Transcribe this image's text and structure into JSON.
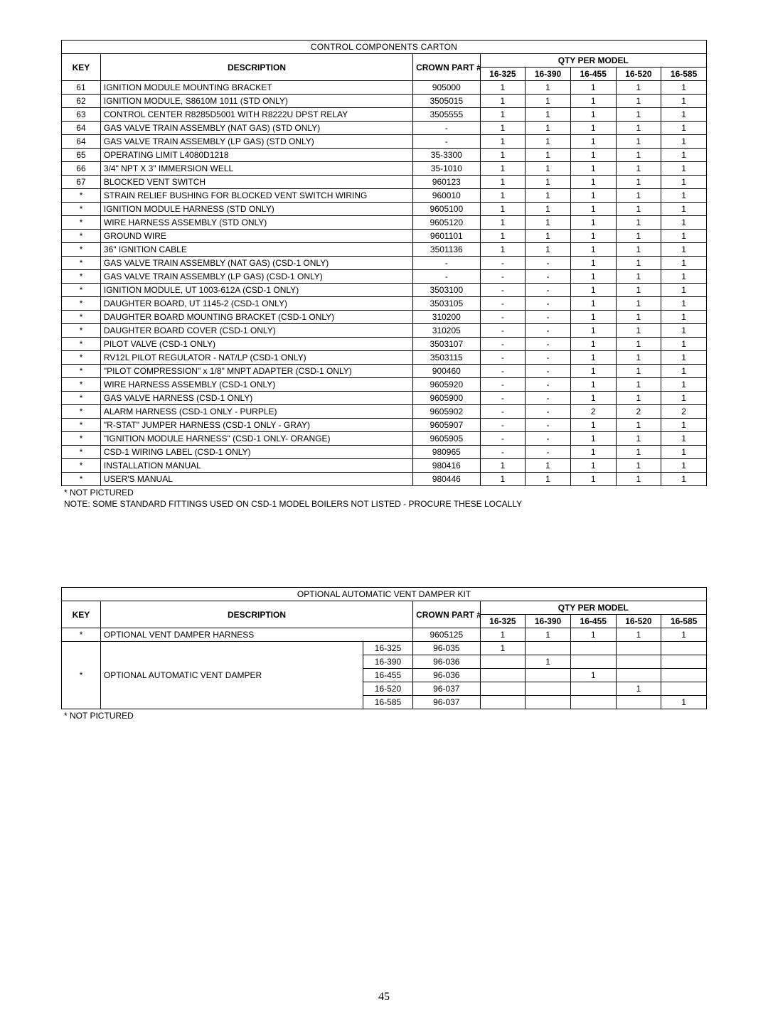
{
  "table1": {
    "title": "CONTROL COMPONENTS CARTON",
    "headers": {
      "key": "KEY",
      "desc": "DESCRIPTION",
      "part": "CROWN PART #",
      "qty_group": "QTY PER MODEL",
      "models": [
        "16-325",
        "16-390",
        "16-455",
        "16-520",
        "16-585"
      ]
    },
    "rows": [
      {
        "key": "61",
        "desc": "IGNITION MODULE MOUNTING BRACKET",
        "part": "905000",
        "q": [
          "1",
          "1",
          "1",
          "1",
          "1"
        ]
      },
      {
        "key": "62",
        "desc": "IGNITION MODULE, S8610M 1011 (STD ONLY)",
        "part": "3505015",
        "q": [
          "1",
          "1",
          "1",
          "1",
          "1"
        ]
      },
      {
        "key": "63",
        "desc": "CONTROL CENTER R8285D5001 WITH R8222U DPST RELAY",
        "part": "3505555",
        "q": [
          "1",
          "1",
          "1",
          "1",
          "1"
        ]
      },
      {
        "key": "64",
        "desc": "GAS VALVE TRAIN ASSEMBLY (NAT GAS) (STD ONLY)",
        "part": "-",
        "q": [
          "1",
          "1",
          "1",
          "1",
          "1"
        ]
      },
      {
        "key": "64",
        "desc": "GAS VALVE TRAIN ASSEMBLY (LP GAS) (STD ONLY)",
        "part": "-",
        "q": [
          "1",
          "1",
          "1",
          "1",
          "1"
        ]
      },
      {
        "key": "65",
        "desc": "OPERATING LIMIT L4080D1218",
        "part": "35-3300",
        "q": [
          "1",
          "1",
          "1",
          "1",
          "1"
        ]
      },
      {
        "key": "66",
        "desc": "3/4\" NPT X 3\" IMMERSION WELL",
        "part": "35-1010",
        "q": [
          "1",
          "1",
          "1",
          "1",
          "1"
        ]
      },
      {
        "key": "67",
        "desc": "BLOCKED VENT SWITCH",
        "part": "960123",
        "q": [
          "1",
          "1",
          "1",
          "1",
          "1"
        ]
      },
      {
        "key": "*",
        "desc": "STRAIN RELIEF BUSHING FOR BLOCKED VENT SWITCH WIRING",
        "part": "960010",
        "q": [
          "1",
          "1",
          "1",
          "1",
          "1"
        ]
      },
      {
        "key": "*",
        "desc": "IGNITION MODULE HARNESS (STD ONLY)",
        "part": "9605100",
        "q": [
          "1",
          "1",
          "1",
          "1",
          "1"
        ]
      },
      {
        "key": "*",
        "desc": "WIRE HARNESS ASSEMBLY (STD ONLY)",
        "part": "9605120",
        "q": [
          "1",
          "1",
          "1",
          "1",
          "1"
        ]
      },
      {
        "key": "*",
        "desc": "GROUND WIRE",
        "part": "9601101",
        "q": [
          "1",
          "1",
          "1",
          "1",
          "1"
        ]
      },
      {
        "key": "*",
        "desc": "36\" IGNITION CABLE",
        "part": "3501136",
        "q": [
          "1",
          "1",
          "1",
          "1",
          "1"
        ]
      },
      {
        "key": "*",
        "desc": "GAS VALVE TRAIN ASSEMBLY (NAT GAS) (CSD-1 ONLY)",
        "part": "-",
        "q": [
          "-",
          "-",
          "1",
          "1",
          "1"
        ]
      },
      {
        "key": "*",
        "desc": "GAS VALVE TRAIN ASSEMBLY (LP GAS) (CSD-1 ONLY)",
        "part": "-",
        "q": [
          "-",
          "-",
          "1",
          "1",
          "1"
        ]
      },
      {
        "key": "*",
        "desc": "IGNITION MODULE, UT 1003-612A (CSD-1 ONLY)",
        "part": "3503100",
        "q": [
          "-",
          "-",
          "1",
          "1",
          "1"
        ]
      },
      {
        "key": "*",
        "desc": "DAUGHTER BOARD, UT 1145-2 (CSD-1 ONLY)",
        "part": "3503105",
        "q": [
          "-",
          "-",
          "1",
          "1",
          "1"
        ]
      },
      {
        "key": "*",
        "desc": "DAUGHTER BOARD MOUNTING BRACKET (CSD-1 ONLY)",
        "part": "310200",
        "q": [
          "-",
          "-",
          "1",
          "1",
          "1"
        ]
      },
      {
        "key": "*",
        "desc": "DAUGHTER BOARD COVER (CSD-1 ONLY)",
        "part": "310205",
        "q": [
          "-",
          "-",
          "1",
          "1",
          "1"
        ]
      },
      {
        "key": "*",
        "desc": "PILOT VALVE (CSD-1 ONLY)",
        "part": "3503107",
        "q": [
          "-",
          "-",
          "1",
          "1",
          "1"
        ]
      },
      {
        "key": "*",
        "desc": "RV12L PILOT REGULATOR - NAT/LP (CSD-1 ONLY)",
        "part": "3503115",
        "q": [
          "-",
          "-",
          "1",
          "1",
          "1"
        ]
      },
      {
        "key": "*",
        "desc": "\"PILOT COMPRESSION\" x 1/8\" MNPT ADAPTER (CSD-1 ONLY)",
        "part": "900460",
        "q": [
          "-",
          "-",
          "1",
          "1",
          "1"
        ]
      },
      {
        "key": "*",
        "desc": "WIRE HARNESS ASSEMBLY (CSD-1 ONLY)",
        "part": "9605920",
        "q": [
          "-",
          "-",
          "1",
          "1",
          "1"
        ]
      },
      {
        "key": "*",
        "desc": "GAS VALVE HARNESS (CSD-1 ONLY)",
        "part": "9605900",
        "q": [
          "-",
          "-",
          "1",
          "1",
          "1"
        ]
      },
      {
        "key": "*",
        "desc": "ALARM HARNESS (CSD-1 ONLY - PURPLE)",
        "part": "9605902",
        "q": [
          "-",
          "-",
          "2",
          "2",
          "2"
        ]
      },
      {
        "key": "*",
        "desc": "\"R-STAT\" JUMPER HARNESS (CSD-1 ONLY - GRAY)",
        "part": "9605907",
        "q": [
          "-",
          "-",
          "1",
          "1",
          "1"
        ]
      },
      {
        "key": "*",
        "desc": "\"IGNITION MODULE HARNESS\" (CSD-1 ONLY- ORANGE)",
        "part": "9605905",
        "q": [
          "-",
          "-",
          "1",
          "1",
          "1"
        ]
      },
      {
        "key": "*",
        "desc": "CSD-1 WIRING LABEL (CSD-1 ONLY)",
        "part": "980965",
        "q": [
          "-",
          "-",
          "1",
          "1",
          "1"
        ]
      },
      {
        "key": "*",
        "desc": "INSTALLATION MANUAL",
        "part": "980416",
        "q": [
          "1",
          "1",
          "1",
          "1",
          "1"
        ]
      },
      {
        "key": "*",
        "desc": "USER'S MANUAL",
        "part": "980446",
        "q": [
          "1",
          "1",
          "1",
          "1",
          "1"
        ]
      }
    ],
    "note1": "* NOT PICTURED",
    "note2": "NOTE: SOME STANDARD FITTINGS USED ON CSD-1 MODEL BOILERS NOT LISTED - PROCURE THESE LOCALLY"
  },
  "table2": {
    "title": "OPTIONAL AUTOMATIC VENT DAMPER KIT",
    "headers": {
      "key": "KEY",
      "desc": "DESCRIPTION",
      "part": "CROWN PART #",
      "qty_group": "QTY PER MODEL",
      "models": [
        "16-325",
        "16-390",
        "16-455",
        "16-520",
        "16-585"
      ]
    },
    "harness_row": {
      "key": "*",
      "desc": "OPTIONAL VENT DAMPER HARNESS",
      "part": "9605125",
      "q": [
        "1",
        "1",
        "1",
        "1",
        "1"
      ]
    },
    "damper": {
      "key": "*",
      "desc": "OPTIONAL AUTOMATIC VENT DAMPER",
      "subs": [
        {
          "model": "16-325",
          "part": "96-035",
          "q": [
            "1",
            "",
            "",
            "",
            ""
          ]
        },
        {
          "model": "16-390",
          "part": "96-036",
          "q": [
            "",
            "1",
            "",
            "",
            ""
          ]
        },
        {
          "model": "16-455",
          "part": "96-036",
          "q": [
            "",
            "",
            "1",
            "",
            ""
          ]
        },
        {
          "model": "16-520",
          "part": "96-037",
          "q": [
            "",
            "",
            "",
            "1",
            ""
          ]
        },
        {
          "model": "16-585",
          "part": "96-037",
          "q": [
            "",
            "",
            "",
            "",
            "1"
          ]
        }
      ]
    },
    "note": "* NOT PICTURED"
  },
  "page_number": "45"
}
